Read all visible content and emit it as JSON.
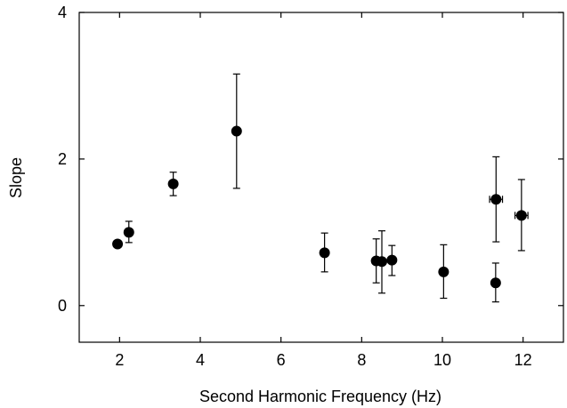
{
  "chart_data": {
    "type": "scatter",
    "title": "",
    "xlabel": "Second Harmonic Frequency (Hz)",
    "ylabel": "Slope",
    "xlim": [
      1,
      13
    ],
    "ylim": [
      -0.5,
      4
    ],
    "xticks": [
      2,
      4,
      6,
      8,
      10,
      12
    ],
    "yticks": [
      0,
      2,
      4
    ],
    "xtick_labels": [
      "2",
      "4",
      "6",
      "8",
      "10",
      "12"
    ],
    "ytick_labels": [
      "0",
      "2",
      "4"
    ],
    "grid": false,
    "legend": false,
    "points": [
      {
        "x": 1.95,
        "y": 0.84,
        "yerr_low": 0.84,
        "yerr_high": 0.84
      },
      {
        "x": 2.23,
        "y": 1.0,
        "yerr_low": 0.86,
        "yerr_high": 1.15
      },
      {
        "x": 3.33,
        "y": 1.66,
        "yerr_low": 1.5,
        "yerr_high": 1.82
      },
      {
        "x": 4.9,
        "y": 2.38,
        "yerr_low": 1.6,
        "yerr_high": 3.16
      },
      {
        "x": 7.08,
        "y": 0.72,
        "yerr_low": 0.46,
        "yerr_high": 0.99
      },
      {
        "x": 8.36,
        "y": 0.61,
        "yerr_low": 0.31,
        "yerr_high": 0.91
      },
      {
        "x": 8.5,
        "y": 0.6,
        "yerr_low": 0.17,
        "yerr_high": 1.02
      },
      {
        "x": 8.75,
        "y": 0.62,
        "yerr_low": 0.41,
        "yerr_high": 0.82
      },
      {
        "x": 10.03,
        "y": 0.46,
        "yerr_low": 0.1,
        "yerr_high": 0.83
      },
      {
        "x": 11.32,
        "y": 0.31,
        "yerr_low": 0.05,
        "yerr_high": 0.58
      },
      {
        "x": 11.33,
        "y": 1.45,
        "yerr_low": 0.87,
        "yerr_high": 2.03,
        "xerr_low": 11.17,
        "xerr_high": 11.49
      },
      {
        "x": 11.96,
        "y": 1.23,
        "yerr_low": 0.75,
        "yerr_high": 1.72,
        "xerr_low": 11.8,
        "xerr_high": 12.12
      }
    ],
    "colors": {
      "marker": "#000000",
      "axes": "#000000"
    }
  }
}
